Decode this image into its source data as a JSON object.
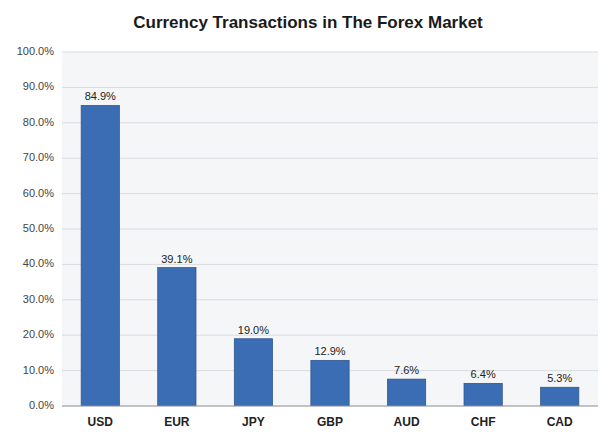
{
  "chart_data": {
    "type": "bar",
    "title": "Currency Transactions in The Forex Market",
    "categories": [
      "USD",
      "EUR",
      "JPY",
      "GBP",
      "AUD",
      "CHF",
      "CAD"
    ],
    "values": [
      84.9,
      39.1,
      19.0,
      12.9,
      7.6,
      6.4,
      5.3
    ],
    "value_labels": [
      "84.9%",
      "39.1%",
      "19.0%",
      "12.9%",
      "7.6%",
      "6.4%",
      "5.3%"
    ],
    "data_labels": true,
    "color": "#3B6DB5",
    "ylim": [
      0,
      100
    ],
    "yticks": [
      {
        "value": 0,
        "label": "0.0%"
      },
      {
        "value": 10,
        "label": "10.0%"
      },
      {
        "value": 20,
        "label": "20.0%"
      },
      {
        "value": 30,
        "label": "30.0%"
      },
      {
        "value": 40,
        "label": "40.0%"
      },
      {
        "value": 50,
        "label": "50.0%"
      },
      {
        "value": 60,
        "label": "60.0%"
      },
      {
        "value": 70,
        "label": "70.0%"
      },
      {
        "value": 80,
        "label": "80.0%"
      },
      {
        "value": 90,
        "label": "90.0%"
      },
      {
        "value": 100,
        "label": "100.0%"
      }
    ],
    "grid": true
  }
}
